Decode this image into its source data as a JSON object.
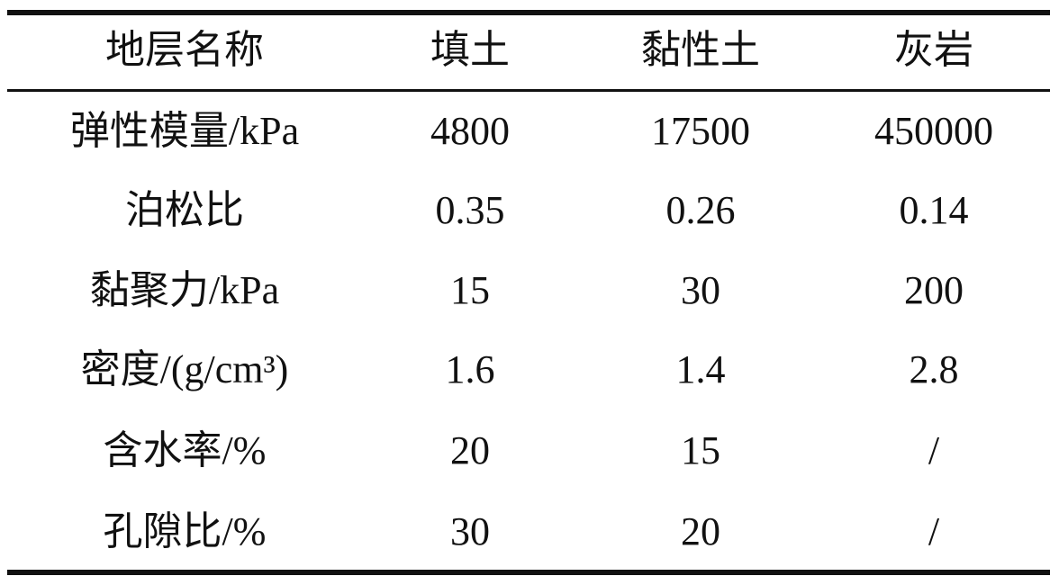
{
  "table": {
    "header": [
      "地层名称",
      "填土",
      "黏性土",
      "灰岩"
    ],
    "rows": [
      [
        "弹性模量/kPa",
        "4800",
        "17500",
        "450000"
      ],
      [
        "泊松比",
        "0.35",
        "0.26",
        "0.14"
      ],
      [
        "黏聚力/kPa",
        "15",
        "30",
        "200"
      ],
      [
        "密度/(g/cm³)",
        "1.6",
        "1.4",
        "2.8"
      ],
      [
        "含水率/%",
        "20",
        "15",
        "/"
      ],
      [
        "孔隙比/%",
        "30",
        "20",
        "/"
      ]
    ]
  }
}
